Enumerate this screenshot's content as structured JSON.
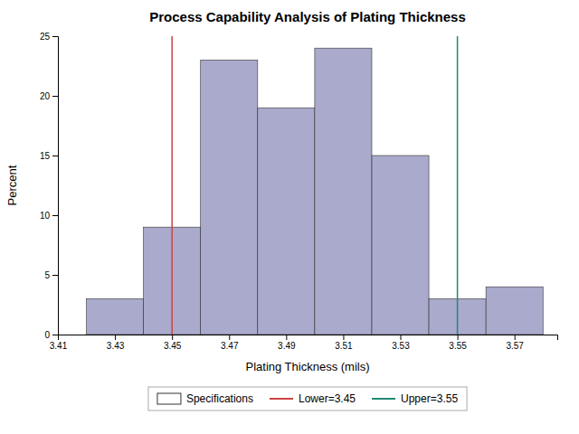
{
  "chart_data": {
    "type": "histogram",
    "title": "Process Capability Analysis of Plating Thickness",
    "x_label": "Plating Thickness (mils)",
    "y_label": "Percent",
    "bins": [
      3.42,
      3.44,
      3.46,
      3.48,
      3.5,
      3.52,
      3.54,
      3.56,
      3.58
    ],
    "values": [
      3,
      9,
      23,
      19,
      24,
      15,
      3,
      4
    ],
    "color": "#aaaacc",
    "xlim": [
      3.41,
      3.585
    ],
    "ylim": [
      0,
      25
    ],
    "xticks": [
      3.41,
      3.43,
      3.45,
      3.47,
      3.49,
      3.51,
      3.53,
      3.55,
      3.57
    ],
    "yticks": [
      0,
      5,
      10,
      15,
      20,
      25
    ],
    "specifications": {
      "label": "Specifications",
      "lines": [
        {
          "name": "Lower=3.45",
          "value": 3.45,
          "color": "#cc4444"
        },
        {
          "name": "Upper=3.55",
          "value": 3.55,
          "color": "#228877"
        }
      ]
    },
    "legend": "bottom",
    "grid": false
  }
}
